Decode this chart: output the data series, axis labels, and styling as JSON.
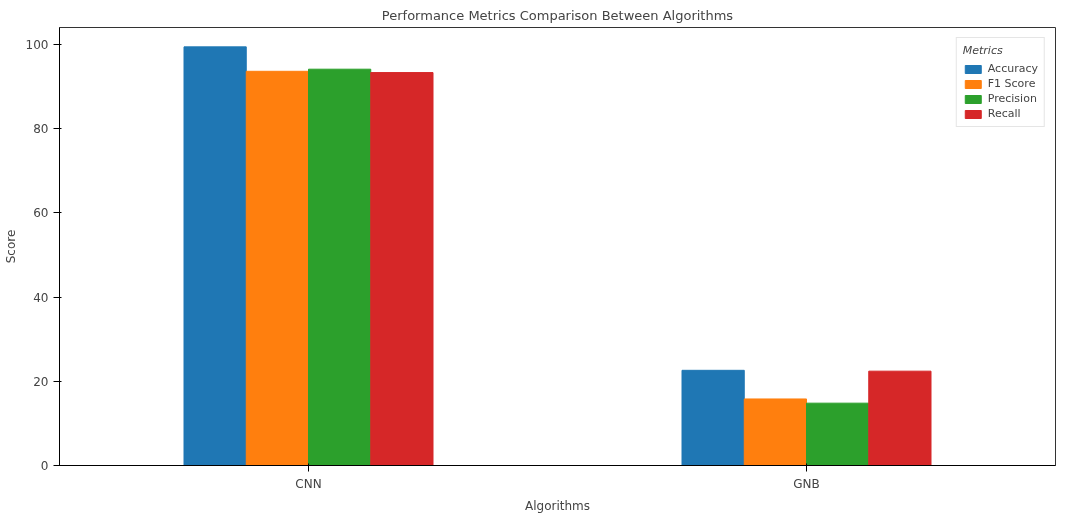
{
  "chart_data": {
    "type": "bar",
    "title": "Performance Metrics Comparison Between Algorithms",
    "xlabel": "Algorithms",
    "ylabel": "Score",
    "legend_title": "Metrics",
    "categories": [
      "CNN",
      "GNB"
    ],
    "series": [
      {
        "name": "Accuracy",
        "color": "#1f77b4",
        "values": [
          99.4,
          22.6
        ]
      },
      {
        "name": "F1 Score",
        "color": "#ff7f0e",
        "values": [
          93.6,
          15.8
        ]
      },
      {
        "name": "Precision",
        "color": "#2ca02c",
        "values": [
          94.1,
          14.8
        ]
      },
      {
        "name": "Recall",
        "color": "#d62728",
        "values": [
          93.3,
          22.4
        ]
      }
    ],
    "ylim": [
      0,
      104
    ],
    "yticks": [
      0,
      20,
      40,
      60,
      80,
      100
    ],
    "grid": false,
    "legend": "top right"
  }
}
